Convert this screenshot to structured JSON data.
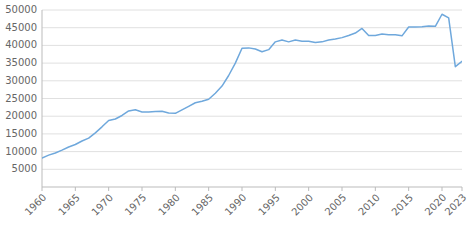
{
  "chart_data": {
    "type": "line",
    "x": [
      1960,
      1961,
      1962,
      1963,
      1964,
      1965,
      1966,
      1967,
      1968,
      1969,
      1970,
      1971,
      1972,
      1973,
      1974,
      1975,
      1976,
      1977,
      1978,
      1979,
      1980,
      1981,
      1982,
      1983,
      1984,
      1985,
      1986,
      1987,
      1988,
      1989,
      1990,
      1991,
      1992,
      1993,
      1994,
      1995,
      1996,
      1997,
      1998,
      1999,
      2000,
      2001,
      2002,
      2003,
      2004,
      2005,
      2006,
      2007,
      2008,
      2009,
      2010,
      2011,
      2012,
      2013,
      2014,
      2015,
      2016,
      2017,
      2018,
      2019,
      2020,
      2021,
      2022,
      2023
    ],
    "values": [
      8200,
      9000,
      9600,
      10400,
      11300,
      12000,
      13000,
      13800,
      15300,
      17000,
      18800,
      19200,
      20200,
      21500,
      21800,
      21200,
      21200,
      21300,
      21400,
      20900,
      20800,
      21800,
      22800,
      23800,
      24200,
      24800,
      26500,
      28500,
      31500,
      35000,
      39200,
      39300,
      39000,
      38200,
      38800,
      41000,
      41500,
      41000,
      41500,
      41200,
      41200,
      40800,
      41000,
      41500,
      41800,
      42200,
      42800,
      43500,
      44800,
      42800,
      42800,
      43200,
      43000,
      43000,
      42700,
      45200,
      45200,
      45300,
      45500,
      45400,
      48800,
      47800,
      34000,
      35500
    ],
    "color": "#6fa8dc",
    "xlim": [
      1960,
      2023
    ],
    "ylim": [
      0,
      50000
    ],
    "xticks": [
      1960,
      1965,
      1970,
      1975,
      1980,
      1985,
      1990,
      1995,
      2000,
      2005,
      2010,
      2015,
      2020,
      2023
    ],
    "yticks": [
      5000,
      10000,
      15000,
      20000,
      25000,
      30000,
      35000,
      40000,
      45000,
      50000
    ],
    "grid": true
  }
}
